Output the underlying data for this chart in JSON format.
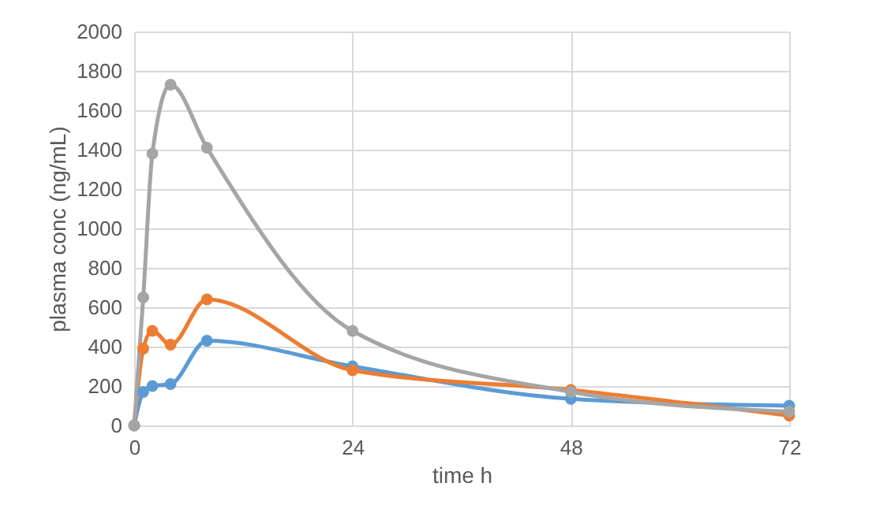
{
  "chart_data": {
    "type": "line",
    "xlabel": "time h",
    "ylabel": "plasma conc (ng/mL)",
    "x": [
      0,
      1,
      2,
      4,
      8,
      24,
      48,
      72
    ],
    "series": [
      {
        "color": "#5b9bd5",
        "values": [
          0,
          170,
          200,
          210,
          430,
          300,
          135,
          100
        ]
      },
      {
        "color": "#ed7d31",
        "values": [
          0,
          390,
          480,
          410,
          640,
          280,
          180,
          50
        ]
      },
      {
        "color": "#a5a5a5",
        "values": [
          0,
          650,
          1380,
          1730,
          1410,
          480,
          170,
          70
        ]
      }
    ],
    "xlim": [
      0,
      72
    ],
    "xticks": [
      0,
      24,
      48,
      72
    ],
    "ylim": [
      0,
      2000
    ],
    "yticks": [
      0,
      200,
      400,
      600,
      800,
      1000,
      1200,
      1400,
      1600,
      1800,
      2000
    ],
    "grid": true,
    "marker": "circle",
    "line_style": "solid",
    "legend": false
  }
}
